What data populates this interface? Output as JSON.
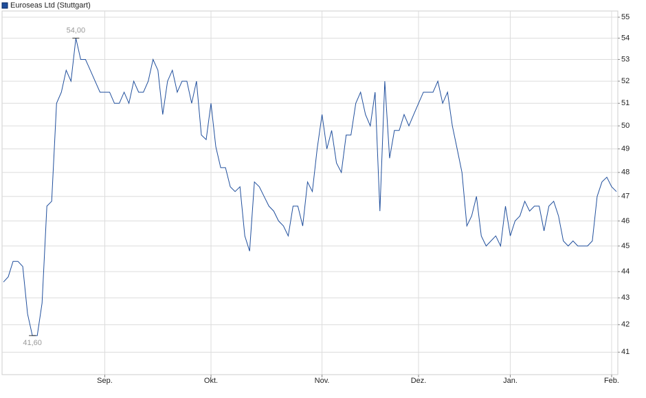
{
  "chart_data": {
    "type": "line",
    "categories": [
      null,
      null,
      null,
      null,
      null,
      null,
      null,
      null,
      null,
      null,
      null,
      null,
      null,
      null,
      null,
      null,
      null,
      null,
      null,
      null,
      null,
      "Sep.",
      null,
      null,
      null,
      null,
      null,
      null,
      null,
      null,
      null,
      null,
      null,
      null,
      null,
      null,
      null,
      null,
      null,
      null,
      null,
      null,
      null,
      "Okt.",
      null,
      null,
      null,
      null,
      null,
      null,
      null,
      null,
      null,
      null,
      null,
      null,
      null,
      null,
      null,
      null,
      null,
      null,
      null,
      null,
      null,
      null,
      "Nov.",
      null,
      null,
      null,
      null,
      null,
      null,
      null,
      null,
      null,
      null,
      null,
      null,
      null,
      null,
      null,
      null,
      null,
      null,
      null,
      "Dez.",
      null,
      null,
      null,
      null,
      null,
      null,
      null,
      null,
      null,
      null,
      null,
      null,
      null,
      null,
      null,
      null,
      null,
      null,
      "Jan.",
      null,
      null,
      null,
      null,
      null,
      null,
      null,
      null,
      null,
      null,
      null,
      null,
      null,
      null,
      null,
      null,
      null,
      null,
      null,
      null,
      "Feb.",
      null
    ],
    "series": [
      {
        "name": "Euroseas Ltd (Stuttgart)",
        "color": "#1f4e9c",
        "values": [
          43.6,
          43.8,
          44.4,
          44.4,
          44.2,
          42.4,
          41.6,
          41.6,
          42.8,
          46.6,
          46.8,
          51,
          51.5,
          52.5,
          52,
          54,
          53,
          53,
          52.5,
          52,
          51.5,
          51.5,
          51.5,
          51,
          51,
          51.5,
          51,
          52,
          51.5,
          51.5,
          52,
          53,
          52.5,
          50.5,
          52,
          52.5,
          51.5,
          52,
          52,
          51,
          52,
          49.6,
          49.4,
          51,
          49.1,
          48.2,
          48.2,
          47.4,
          47.2,
          47.4,
          45.4,
          44.8,
          47.6,
          47.4,
          47,
          46.6,
          46.4,
          46,
          45.8,
          45.4,
          46.6,
          46.6,
          45.8,
          47.6,
          47.2,
          49,
          50.5,
          49,
          49.8,
          48.4,
          48,
          49.6,
          49.6,
          51,
          51.5,
          50.5,
          50,
          51.5,
          46.4,
          52,
          48.6,
          49.8,
          49.8,
          50.5,
          50,
          50.5,
          51,
          51.5,
          51.5,
          51.5,
          52,
          51,
          51.5,
          50,
          49,
          48,
          45.8,
          46.2,
          47,
          45.4,
          45,
          45.2,
          45.4,
          45,
          46.6,
          45.4,
          46,
          46.2,
          46.8,
          46.4,
          46.6,
          46.6,
          45.6,
          46.6,
          46.8,
          46.2,
          45.2,
          45,
          45.2,
          45,
          45,
          45,
          45.2,
          47,
          47.6,
          47.8,
          47.4,
          47.2
        ]
      }
    ],
    "annotations": [
      {
        "value": 54,
        "label": "54,00"
      },
      {
        "value": 41.6,
        "label": "41,60"
      }
    ],
    "ylim": [
      40.2,
      55.3
    ],
    "yticks": [
      41,
      42,
      43,
      44,
      45,
      46,
      47,
      48,
      49,
      50,
      51,
      52,
      53,
      54,
      55
    ],
    "log_scale": true,
    "grid": true
  }
}
